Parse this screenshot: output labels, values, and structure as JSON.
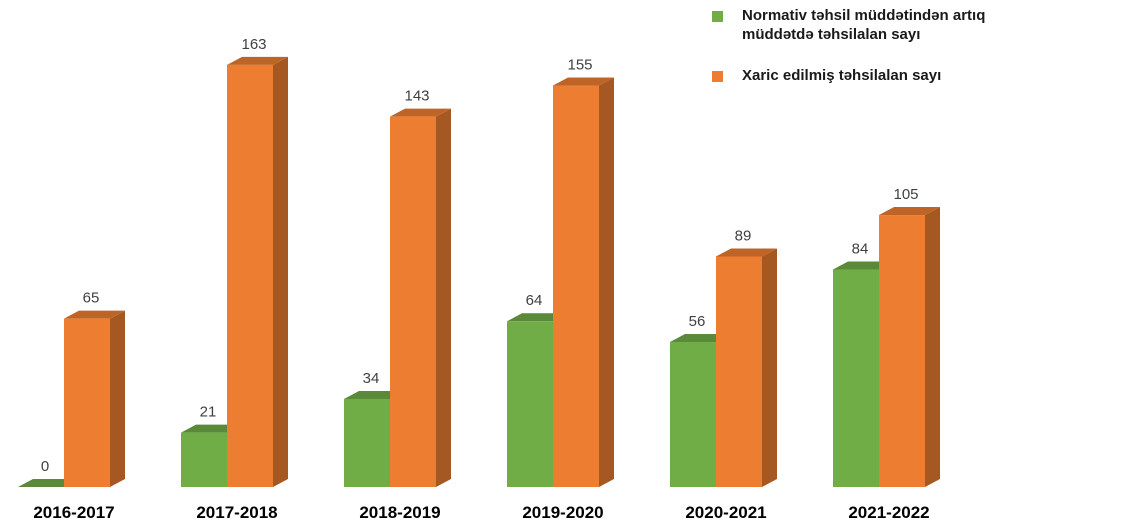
{
  "chart_data": {
    "type": "bar3d",
    "categories": [
      "2016-2017",
      "2017-2018",
      "2018-2019",
      "2019-2020",
      "2020-2021",
      "2021-2022"
    ],
    "series": [
      {
        "name": "Normativ təhsil müddətindən artıq müddətdə təhsilalan sayı",
        "color": "#70ad47",
        "values": [
          0,
          21,
          34,
          64,
          56,
          84
        ]
      },
      {
        "name": "Xaric edilmiş təhsilalan sayı",
        "color": "#ed7d31",
        "values": [
          65,
          163,
          143,
          155,
          89,
          105
        ]
      }
    ],
    "legend": "top-right"
  }
}
